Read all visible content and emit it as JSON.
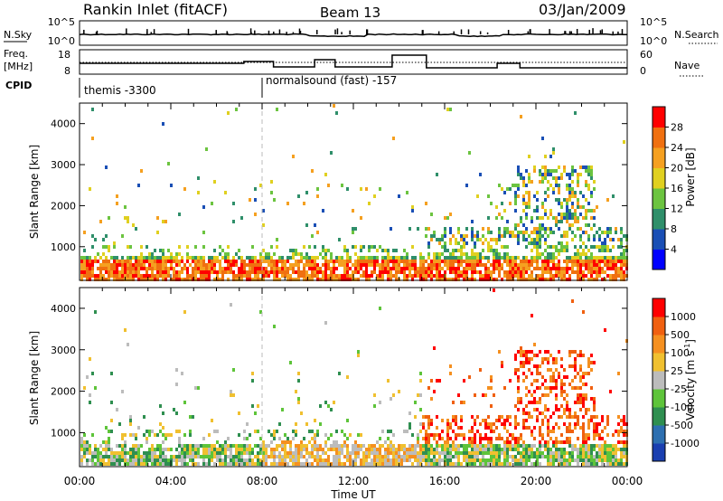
{
  "header": {
    "title": "Rankin Inlet (fitACF)",
    "beam": "Beam 13",
    "date": "03/Jan/2009"
  },
  "sky_panel": {
    "left_label": "N.Sky",
    "left_ticks": [
      "10^5",
      "10^0"
    ],
    "right_label": "N.Search",
    "right_ticks": [
      "10^5",
      "10^0"
    ]
  },
  "freq_panel": {
    "left_label_1": "Freq.",
    "left_label_2": "[MHz]",
    "left_ticks": [
      "18",
      "8"
    ],
    "right_label": "Nave",
    "right_ticks": [
      "60",
      "0"
    ]
  },
  "cpid": {
    "label": "CPID",
    "segments": [
      {
        "text": "themis -3300",
        "start_hour": 0
      },
      {
        "text": "normalsound (fast) -157",
        "start_hour": 8
      }
    ]
  },
  "colors": {
    "power_scale": [
      "#0000ff",
      "#1a4fb5",
      "#2f8f6a",
      "#6cc440",
      "#e0d020",
      "#f5a020",
      "#f07010",
      "#ff0000"
    ],
    "velocity_scale": [
      "#1a3fb0",
      "#2d6fb0",
      "#2f8f50",
      "#5ec43a",
      "#bcbcbc",
      "#f0c030",
      "#f59020",
      "#f06010",
      "#ff0000"
    ]
  },
  "chart_data": [
    {
      "type": "heatmap",
      "name": "Power",
      "ylabel": "Slant Range [km]",
      "ylim": [
        180,
        4500
      ],
      "yticks": [
        "1000",
        "2000",
        "3000",
        "4000"
      ],
      "xlim_hours": [
        0,
        24
      ],
      "xticks": [
        "00:00",
        "04:00",
        "08:00",
        "12:00",
        "16:00",
        "20:00",
        "00:00"
      ],
      "colorbar": {
        "label": "Power [dB]",
        "ticks": [
          "4",
          "8",
          "12",
          "16",
          "20",
          "24",
          "28"
        ]
      }
    },
    {
      "type": "heatmap",
      "name": "Velocity",
      "ylabel": "Slant Range [km]",
      "ylim": [
        180,
        4500
      ],
      "yticks": [
        "1000",
        "2000",
        "3000",
        "4000"
      ],
      "xlim_hours": [
        0,
        24
      ],
      "xticks": [
        "00:00",
        "04:00",
        "08:00",
        "12:00",
        "16:00",
        "20:00",
        "00:00"
      ],
      "xlabel": "Time UT",
      "colorbar": {
        "label_main": "Velocity  [m s",
        "label_sup": "-1",
        "label_end": "]",
        "ticks": [
          "1000",
          "500",
          "100",
          "25",
          "-25",
          "-100",
          "-500",
          "-1000"
        ]
      }
    }
  ]
}
